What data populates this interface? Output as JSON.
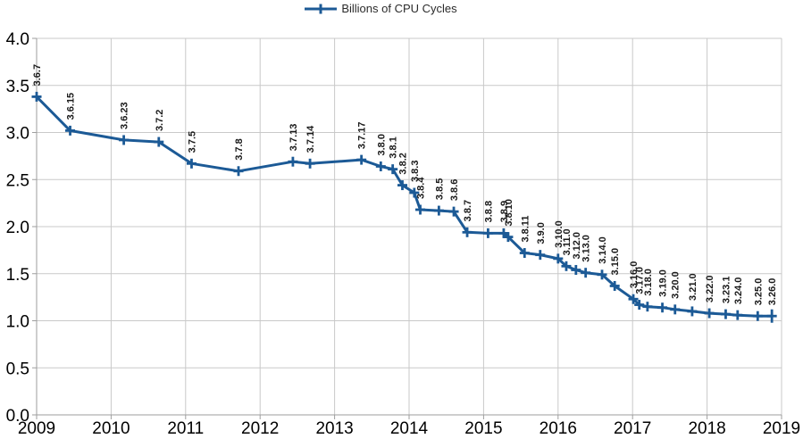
{
  "chart_data": {
    "type": "line",
    "title": "",
    "xlabel": "",
    "ylabel": "",
    "xlim": [
      2009,
      2019
    ],
    "ylim": [
      0.0,
      4.0
    ],
    "grid": true,
    "legend_position": "top-center",
    "x_ticks": [
      {
        "value": 2009,
        "label": "2009"
      },
      {
        "value": 2010,
        "label": "2010"
      },
      {
        "value": 2011,
        "label": "2011"
      },
      {
        "value": 2012,
        "label": "2012"
      },
      {
        "value": 2013,
        "label": "2013"
      },
      {
        "value": 2014,
        "label": "2014"
      },
      {
        "value": 2015,
        "label": "2015"
      },
      {
        "value": 2016,
        "label": "2016"
      },
      {
        "value": 2017,
        "label": "2017"
      },
      {
        "value": 2018,
        "label": "2018"
      },
      {
        "value": 2019,
        "label": "2019"
      }
    ],
    "y_ticks": [
      {
        "value": 0.0,
        "label": "0.0"
      },
      {
        "value": 0.5,
        "label": "0.5"
      },
      {
        "value": 1.0,
        "label": "1.0"
      },
      {
        "value": 1.5,
        "label": "1.5"
      },
      {
        "value": 2.0,
        "label": "2.0"
      },
      {
        "value": 2.5,
        "label": "2.5"
      },
      {
        "value": 3.0,
        "label": "3.0"
      },
      {
        "value": 3.5,
        "label": "3.5"
      },
      {
        "value": 4.0,
        "label": "4.0"
      }
    ],
    "series": [
      {
        "name": "Billions of CPU Cycles",
        "color": "#1c5a96",
        "marker": "plus",
        "point_labels_rotated_degrees": 90,
        "points": [
          {
            "label": "3.6.7",
            "x": 2009.0,
            "y": 3.38
          },
          {
            "label": "3.6.15",
            "x": 2009.45,
            "y": 3.02
          },
          {
            "label": "3.6.23",
            "x": 2010.17,
            "y": 2.92
          },
          {
            "label": "3.7.2",
            "x": 2010.64,
            "y": 2.9
          },
          {
            "label": "3.7.5",
            "x": 2011.08,
            "y": 2.67
          },
          {
            "label": "3.7.8",
            "x": 2011.71,
            "y": 2.59
          },
          {
            "label": "3.7.13",
            "x": 2012.44,
            "y": 2.69
          },
          {
            "label": "3.7.14",
            "x": 2012.67,
            "y": 2.67
          },
          {
            "label": "3.7.17",
            "x": 2013.36,
            "y": 2.71
          },
          {
            "label": "3.8.0",
            "x": 2013.62,
            "y": 2.64
          },
          {
            "label": "3.8.1",
            "x": 2013.78,
            "y": 2.61
          },
          {
            "label": "3.8.2",
            "x": 2013.91,
            "y": 2.44
          },
          {
            "label": "3.8.3",
            "x": 2014.07,
            "y": 2.36
          },
          {
            "label": "3.8.4",
            "x": 2014.15,
            "y": 2.18
          },
          {
            "label": "3.8.5",
            "x": 2014.4,
            "y": 2.17
          },
          {
            "label": "3.8.6",
            "x": 2014.6,
            "y": 2.16
          },
          {
            "label": "3.8.7",
            "x": 2014.78,
            "y": 1.94
          },
          {
            "label": "3.8.8",
            "x": 2015.06,
            "y": 1.93
          },
          {
            "label": "3.8.9",
            "x": 2015.27,
            "y": 1.93
          },
          {
            "label": "3.8.10",
            "x": 2015.33,
            "y": 1.89
          },
          {
            "label": "3.8.11",
            "x": 2015.55,
            "y": 1.72
          },
          {
            "label": "3.9.0",
            "x": 2015.76,
            "y": 1.7
          },
          {
            "label": "3.10.0",
            "x": 2016.0,
            "y": 1.66
          },
          {
            "label": "3.11.0",
            "x": 2016.11,
            "y": 1.58
          },
          {
            "label": "3.12.0",
            "x": 2016.24,
            "y": 1.54
          },
          {
            "label": "3.13.0",
            "x": 2016.37,
            "y": 1.51
          },
          {
            "label": "3.14.0",
            "x": 2016.59,
            "y": 1.49
          },
          {
            "label": "3.15.0",
            "x": 2016.76,
            "y": 1.37
          },
          {
            "label": "3.16.0",
            "x": 2017.01,
            "y": 1.23
          },
          {
            "label": "3.17.0",
            "x": 2017.09,
            "y": 1.17
          },
          {
            "label": "3.18.0",
            "x": 2017.2,
            "y": 1.15
          },
          {
            "label": "3.19.0",
            "x": 2017.4,
            "y": 1.14
          },
          {
            "label": "3.20.0",
            "x": 2017.57,
            "y": 1.12
          },
          {
            "label": "3.21.0",
            "x": 2017.8,
            "y": 1.1
          },
          {
            "label": "3.22.0",
            "x": 2018.03,
            "y": 1.08
          },
          {
            "label": "3.23.1",
            "x": 2018.25,
            "y": 1.07
          },
          {
            "label": "3.24.0",
            "x": 2018.41,
            "y": 1.06
          },
          {
            "label": "3.25.0",
            "x": 2018.68,
            "y": 1.05
          },
          {
            "label": "3.26.0",
            "x": 2018.87,
            "y": 1.05
          }
        ]
      }
    ],
    "colors": {
      "series_blue": "#1c5a96",
      "gridline": "#c9c9c9",
      "axis_line": "#9e9e9e",
      "tick_label": "#000000",
      "data_label": "#1a1a1a",
      "background": "#ffffff"
    }
  }
}
